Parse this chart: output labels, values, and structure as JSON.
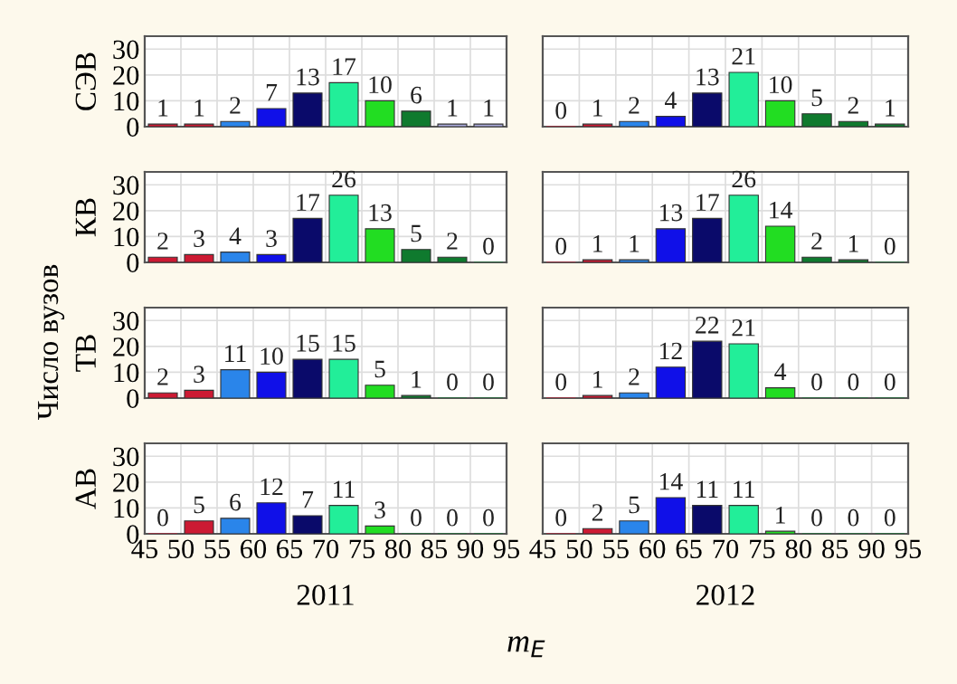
{
  "chart_data": [
    {
      "type": "histogram",
      "ylabel": "СЭВ",
      "bins": [
        45,
        50,
        55,
        60,
        65,
        70,
        75,
        80,
        85,
        90,
        95
      ],
      "values": [
        1,
        1,
        2,
        7,
        13,
        17,
        10,
        6,
        1,
        1
      ],
      "colors": [
        "#cc1a33",
        "#cc1a33",
        "#2a85ea",
        "#1010e8",
        "#0a0a6a",
        "#22ee99",
        "#22dd22",
        "#0f7a2e",
        "#aaaadd",
        "#aaaadd"
      ],
      "xlim": [
        45,
        95
      ],
      "xticks": [
        45,
        50,
        55,
        60,
        65,
        70,
        75,
        80,
        85,
        90,
        95
      ],
      "ylim": [
        0,
        35
      ],
      "yticks": [
        0,
        10,
        20,
        30
      ],
      "grid": true,
      "data_labels": true,
      "tick_labels": "y",
      "annotations": [
        "Число вузов"
      ]
    },
    {
      "type": "histogram",
      "bins": [
        45,
        50,
        55,
        60,
        65,
        70,
        75,
        80,
        85,
        90,
        95
      ],
      "values": [
        0,
        1,
        2,
        4,
        13,
        21,
        10,
        5,
        2,
        1
      ],
      "colors": [
        "#cc1a33",
        "#cc1a33",
        "#2a85ea",
        "#1010e8",
        "#0a0a6a",
        "#22ee99",
        "#22dd22",
        "#0f7a2e",
        "#0f7a2e",
        "#0f7a2e"
      ],
      "xlim": [
        45,
        95
      ],
      "xticks": [
        45,
        50,
        55,
        60,
        65,
        70,
        75,
        80,
        85,
        90,
        95
      ],
      "ylim": [
        0,
        35
      ],
      "yticks": [
        0,
        10,
        20,
        30
      ],
      "grid": true,
      "data_labels": true,
      "tick_labels": false
    },
    {
      "type": "histogram",
      "ylabel": "КВ",
      "bins": [
        45,
        50,
        55,
        60,
        65,
        70,
        75,
        80,
        85,
        90,
        95
      ],
      "values": [
        2,
        3,
        4,
        3,
        17,
        26,
        13,
        5,
        2,
        0
      ],
      "colors": [
        "#cc1a33",
        "#cc1a33",
        "#2a85ea",
        "#1010e8",
        "#0a0a6a",
        "#22ee99",
        "#22dd22",
        "#0f7a2e",
        "#0f7a2e",
        "#0f7a2e"
      ],
      "xlim": [
        45,
        95
      ],
      "xticks": [
        45,
        50,
        55,
        60,
        65,
        70,
        75,
        80,
        85,
        90,
        95
      ],
      "ylim": [
        0,
        35
      ],
      "yticks": [
        0,
        10,
        20,
        30
      ],
      "grid": true,
      "data_labels": true,
      "tick_labels": "y"
    },
    {
      "type": "histogram",
      "bins": [
        45,
        50,
        55,
        60,
        65,
        70,
        75,
        80,
        85,
        90,
        95
      ],
      "values": [
        0,
        1,
        1,
        13,
        17,
        26,
        14,
        2,
        1,
        0
      ],
      "colors": [
        "#cc1a33",
        "#cc1a33",
        "#2a85ea",
        "#1010e8",
        "#0a0a6a",
        "#22ee99",
        "#22dd22",
        "#0f7a2e",
        "#0f7a2e",
        "#0f7a2e"
      ],
      "xlim": [
        45,
        95
      ],
      "xticks": [
        45,
        50,
        55,
        60,
        65,
        70,
        75,
        80,
        85,
        90,
        95
      ],
      "ylim": [
        0,
        35
      ],
      "yticks": [
        0,
        10,
        20,
        30
      ],
      "grid": true,
      "data_labels": true,
      "tick_labels": false
    },
    {
      "type": "histogram",
      "ylabel": "ТВ",
      "bins": [
        45,
        50,
        55,
        60,
        65,
        70,
        75,
        80,
        85,
        90,
        95
      ],
      "values": [
        2,
        3,
        11,
        10,
        15,
        15,
        5,
        1,
        0,
        0
      ],
      "colors": [
        "#cc1a33",
        "#cc1a33",
        "#2a85ea",
        "#1010e8",
        "#0a0a6a",
        "#22ee99",
        "#22dd22",
        "#0f7a2e",
        "#0f7a2e",
        "#0f7a2e"
      ],
      "xlim": [
        45,
        95
      ],
      "xticks": [
        45,
        50,
        55,
        60,
        65,
        70,
        75,
        80,
        85,
        90,
        95
      ],
      "ylim": [
        0,
        35
      ],
      "yticks": [
        0,
        10,
        20,
        30
      ],
      "grid": true,
      "data_labels": true,
      "tick_labels": "y"
    },
    {
      "type": "histogram",
      "bins": [
        45,
        50,
        55,
        60,
        65,
        70,
        75,
        80,
        85,
        90,
        95
      ],
      "values": [
        0,
        1,
        2,
        12,
        22,
        21,
        4,
        0,
        0,
        0
      ],
      "colors": [
        "#cc1a33",
        "#cc1a33",
        "#2a85ea",
        "#1010e8",
        "#0a0a6a",
        "#22ee99",
        "#22dd22",
        "#0f7a2e",
        "#0f7a2e",
        "#0f7a2e"
      ],
      "xlim": [
        45,
        95
      ],
      "xticks": [
        45,
        50,
        55,
        60,
        65,
        70,
        75,
        80,
        85,
        90,
        95
      ],
      "ylim": [
        0,
        35
      ],
      "yticks": [
        0,
        10,
        20,
        30
      ],
      "grid": true,
      "data_labels": true,
      "tick_labels": false
    },
    {
      "type": "histogram",
      "ylabel": "АВ",
      "xlabel": "2011",
      "bins": [
        45,
        50,
        55,
        60,
        65,
        70,
        75,
        80,
        85,
        90,
        95
      ],
      "values": [
        0,
        5,
        6,
        12,
        7,
        11,
        3,
        0,
        0,
        0
      ],
      "colors": [
        "#cc1a33",
        "#cc1a33",
        "#2a85ea",
        "#1010e8",
        "#0a0a6a",
        "#22ee99",
        "#22dd22",
        "#0f7a2e",
        "#0f7a2e",
        "#0f7a2e"
      ],
      "xlim": [
        45,
        95
      ],
      "xticks": [
        45,
        50,
        55,
        60,
        65,
        70,
        75,
        80,
        85,
        90,
        95
      ],
      "ylim": [
        0,
        35
      ],
      "yticks": [
        0,
        10,
        20,
        30
      ],
      "grid": true,
      "data_labels": true
    },
    {
      "type": "histogram",
      "xlabel": "2012",
      "bins": [
        45,
        50,
        55,
        60,
        65,
        70,
        75,
        80,
        85,
        90,
        95
      ],
      "values": [
        0,
        2,
        5,
        14,
        11,
        11,
        1,
        0,
        0,
        0
      ],
      "colors": [
        "#cc1a33",
        "#cc1a33",
        "#2a85ea",
        "#1010e8",
        "#0a0a6a",
        "#22ee99",
        "#22dd22",
        "#0f7a2e",
        "#0f7a2e",
        "#0f7a2e"
      ],
      "xlim": [
        45,
        95
      ],
      "xticks": [
        45,
        50,
        55,
        60,
        65,
        70,
        75,
        80,
        85,
        90,
        95
      ],
      "ylim": [
        0,
        35
      ],
      "yticks": [
        0,
        10,
        20,
        30
      ],
      "grid": true,
      "data_labels": true,
      "tick_labels": "x",
      "annotations": [
        "m$_{E}$"
      ]
    }
  ]
}
